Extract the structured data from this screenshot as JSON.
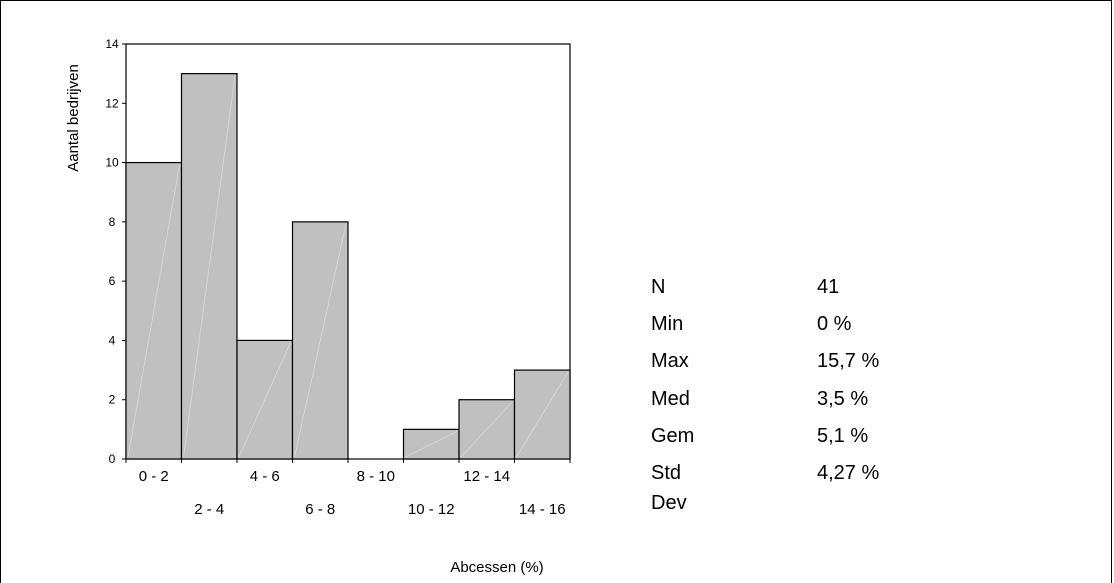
{
  "chart_data": {
    "type": "bar",
    "categories": [
      "0 - 2",
      "2 - 4",
      "4 - 6",
      "6 - 8",
      "8 - 10",
      "10 - 12",
      "12 - 14",
      "14 - 16"
    ],
    "values": [
      10,
      13,
      4,
      8,
      0,
      1,
      2,
      3
    ],
    "xlabel": "Abcessen (%)",
    "ylabel": "Aantal bedrijven",
    "ylim": [
      0,
      14
    ],
    "yticks": [
      0,
      2,
      4,
      6,
      8,
      10,
      12,
      14
    ],
    "bar_color": "#c0c0c0",
    "grid": false
  },
  "stats": [
    {
      "label": "N",
      "value": "41"
    },
    {
      "label": "Min",
      "value": "0 %"
    },
    {
      "label": "Max",
      "value": "15,7 %"
    },
    {
      "label": "Med",
      "value": "3,5 %"
    },
    {
      "label": "Gem",
      "value": "5,1 %"
    },
    {
      "label": "Std Dev",
      "value": "4,27 %"
    }
  ]
}
